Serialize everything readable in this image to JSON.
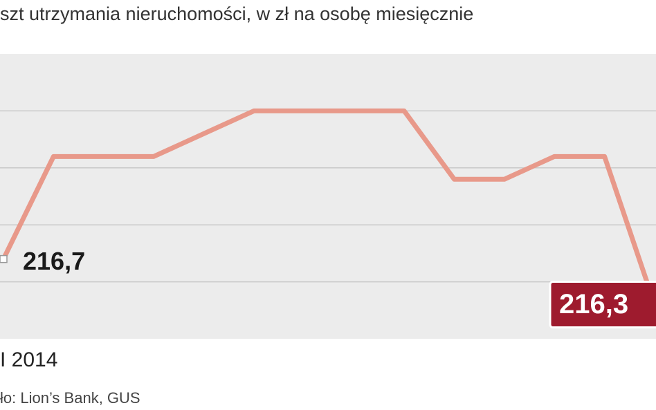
{
  "chart_data": {
    "type": "line",
    "title": "szt utrzymania nieruchomości, w zł na osobę miesięcznie",
    "period_label": "I 2014",
    "source": "ło: Lion’s Bank, GUS",
    "categories": [
      null,
      null,
      null,
      null,
      null,
      null,
      null,
      null,
      null,
      null,
      null,
      null,
      null,
      null
    ],
    "values": [
      216.7,
      217.6,
      217.6,
      217.6,
      217.8,
      218.0,
      218.0,
      218.0,
      218.0,
      217.4,
      217.4,
      217.6,
      217.6,
      216.3
    ],
    "value_labels": [
      "216,7",
      null,
      null,
      null,
      null,
      null,
      null,
      null,
      null,
      null,
      null,
      null,
      null,
      "216,3"
    ],
    "color": "#e8998a",
    "ylim": [
      216.0,
      218.5
    ],
    "yticks": [
      216.5,
      217,
      217.5,
      218
    ],
    "grid": true
  }
}
